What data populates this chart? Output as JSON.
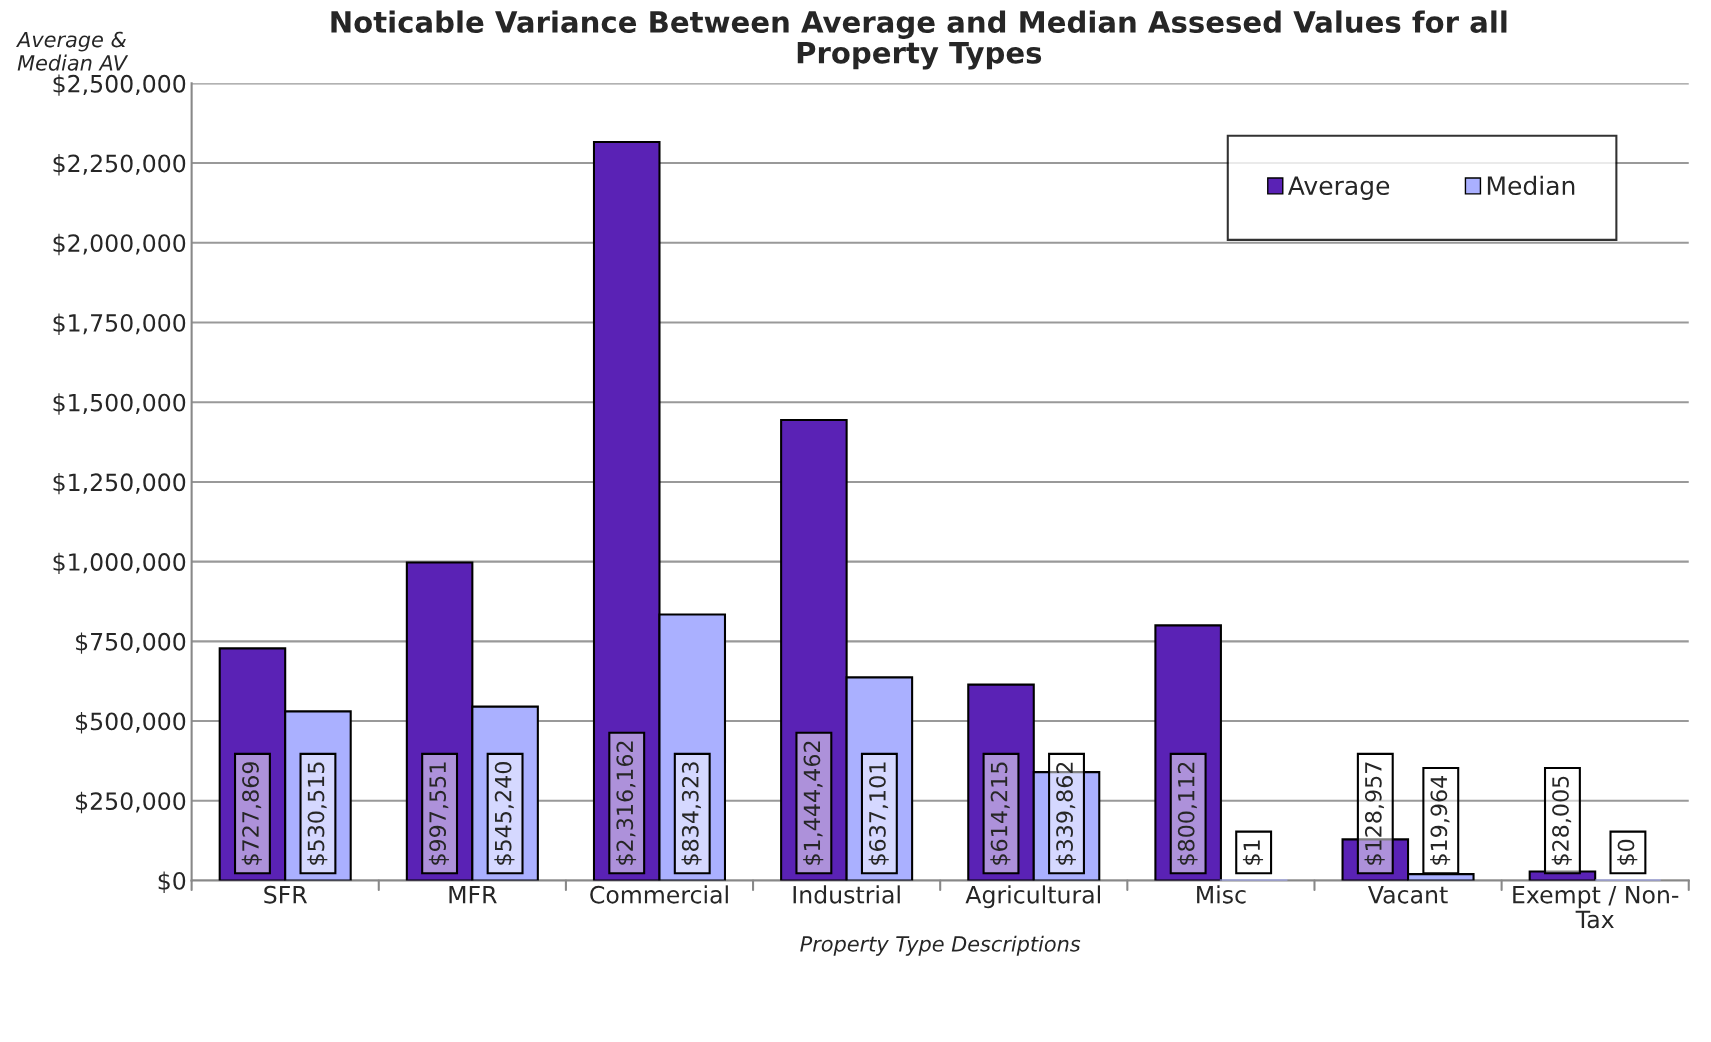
{
  "chart_data": {
    "type": "bar",
    "title": "Noticable Variance Between Average and Median Assesed Values for all\nProperty Types",
    "xlabel": "Property Type Descriptions",
    "ylabel": "Average &\nMedian AV",
    "categories": [
      "SFR",
      "MFR",
      "Commercial",
      "Industrial",
      "Agricultural",
      "Misc",
      "Vacant",
      "Exempt / Non-\nTax"
    ],
    "series": [
      {
        "name": "Average",
        "color": "#5a22b5",
        "values": [
          727869,
          997551,
          2316162,
          1444462,
          614215,
          800112,
          128957,
          28005
        ],
        "value_labels": [
          "$727,869",
          "$997,551",
          "$2,316,162",
          "$1,444,462",
          "$614,215",
          "$800,112",
          "$128,957",
          "$28,005"
        ]
      },
      {
        "name": "Median",
        "color": "#aab0ff",
        "values": [
          530515,
          545240,
          834323,
          637101,
          339862,
          1,
          19964,
          0
        ],
        "value_labels": [
          "$530,515",
          "$545,240",
          "$834,323",
          "$637,101",
          "$339,862",
          "$1",
          "$19,964",
          "$0"
        ]
      }
    ],
    "ylim": [
      0,
      2500000
    ],
    "yticks": [
      {
        "value": 0,
        "label": "$0"
      },
      {
        "value": 250000,
        "label": "$250,000"
      },
      {
        "value": 500000,
        "label": "$500,000"
      },
      {
        "value": 750000,
        "label": "$750,000"
      },
      {
        "value": 1000000,
        "label": "$1,000,000"
      },
      {
        "value": 1250000,
        "label": "$1,250,000"
      },
      {
        "value": 1500000,
        "label": "$1,500,000"
      },
      {
        "value": 1750000,
        "label": "$1,750,000"
      },
      {
        "value": 2000000,
        "label": "$2,000,000"
      },
      {
        "value": 2250000,
        "label": "$2,250,000"
      },
      {
        "value": 2500000,
        "label": "$2,500,000"
      }
    ],
    "grid": "y",
    "legend": "top right"
  }
}
